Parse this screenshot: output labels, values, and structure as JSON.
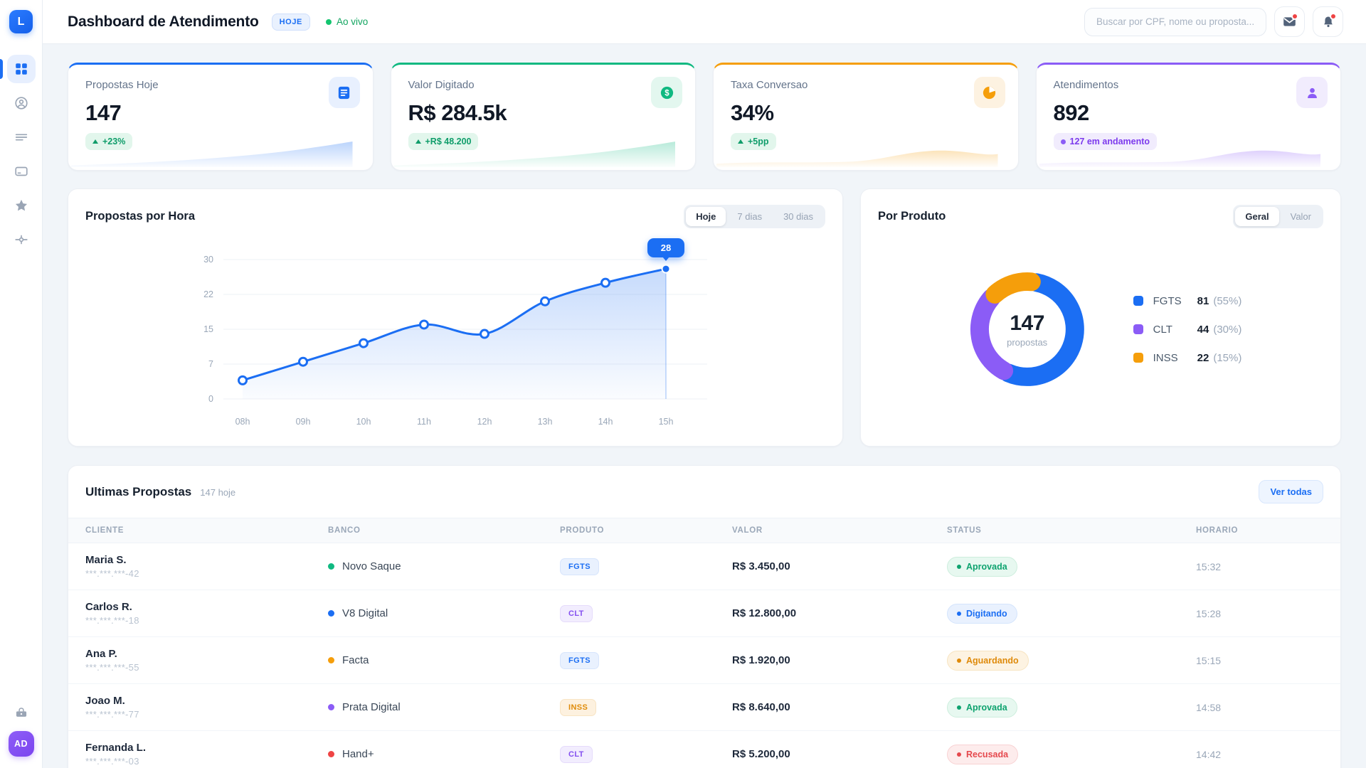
{
  "app": {
    "logo_letter": "L",
    "avatar_initials": "AD"
  },
  "header": {
    "title": "Dashboard de Atendimento",
    "period_badge": "HOJE",
    "live_label": "Ao vivo",
    "search_placeholder": "Buscar por CPF, nome ou proposta..."
  },
  "stats": [
    {
      "label": "Propostas Hoje",
      "value": "147",
      "delta": "+23%",
      "delta_style": "delta-green",
      "accent": "#1b6ef3",
      "icon_bg": "#e8f0fe",
      "icon": "file-text-icon",
      "spark": "ramp"
    },
    {
      "label": "Valor Digitado",
      "value": "R$ 284.5k",
      "delta": "+R$ 48.200",
      "delta_style": "delta-green",
      "accent": "#10b981",
      "icon_bg": "#e3f7ef",
      "icon": "dollar-circle-icon",
      "spark": "ramp"
    },
    {
      "label": "Taxa Conversao",
      "value": "34%",
      "delta": "+5pp",
      "delta_style": "delta-green",
      "accent": "#f59e0b",
      "icon_bg": "#fdf2e1",
      "icon": "pie-chart-icon",
      "spark": "wave"
    },
    {
      "label": "Atendimentos",
      "value": "892",
      "delta": "127 em andamento",
      "delta_style": "delta-purple",
      "accent": "#8b5cf6",
      "icon_bg": "#f1ecfd",
      "icon": "person-icon",
      "spark": "wave"
    }
  ],
  "hourly": {
    "title": "Propostas por Hora",
    "tabs": [
      "Hoje",
      "7 dias",
      "30 dias"
    ],
    "active_tab": "Hoje",
    "tooltip": "28"
  },
  "products": {
    "title": "Por Produto",
    "tabs": [
      "Geral",
      "Valor"
    ],
    "active_tab": "Geral",
    "center_value": "147",
    "center_label": "propostas",
    "legend": [
      {
        "label": "FGTS",
        "value": "81",
        "pct": "(55%)",
        "color": "#1b6ef3"
      },
      {
        "label": "CLT",
        "value": "44",
        "pct": "(30%)",
        "color": "#8b5cf6"
      },
      {
        "label": "INSS",
        "value": "22",
        "pct": "(15%)",
        "color": "#f59e0b"
      }
    ]
  },
  "table": {
    "title": "Ultimas Propostas",
    "subtitle": "147 hoje",
    "action": "Ver todas",
    "columns": [
      "CLIENTE",
      "BANCO",
      "PRODUTO",
      "VALOR",
      "STATUS",
      "HORARIO"
    ],
    "rows": [
      {
        "client": "Maria S.",
        "cpf": "***.***.***-42",
        "bank": "Novo Saque",
        "bank_color": "#10b981",
        "product": "FGTS",
        "value": "R$ 3.450,00",
        "status": "Aprovada",
        "status_type": "approved",
        "time": "15:32"
      },
      {
        "client": "Carlos R.",
        "cpf": "***.***.***-18",
        "bank": "V8 Digital",
        "bank_color": "#1b6ef3",
        "product": "CLT",
        "value": "R$ 12.800,00",
        "status": "Digitando",
        "status_type": "typing",
        "time": "15:28"
      },
      {
        "client": "Ana P.",
        "cpf": "***.***.***-55",
        "bank": "Facta",
        "bank_color": "#f59e0b",
        "product": "FGTS",
        "value": "R$ 1.920,00",
        "status": "Aguardando",
        "status_type": "waiting",
        "time": "15:15"
      },
      {
        "client": "Joao M.",
        "cpf": "***.***.***-77",
        "bank": "Prata Digital",
        "bank_color": "#8b5cf6",
        "product": "INSS",
        "value": "R$ 8.640,00",
        "status": "Aprovada",
        "status_type": "approved",
        "time": "14:58"
      },
      {
        "client": "Fernanda L.",
        "cpf": "***.***.***-03",
        "bank": "Hand+",
        "bank_color": "#ef4444",
        "product": "CLT",
        "value": "R$ 5.200,00",
        "status": "Recusada",
        "status_type": "rejected",
        "time": "14:42"
      }
    ]
  },
  "chart_data": [
    {
      "type": "line",
      "title": "Propostas por Hora",
      "x": [
        "08h",
        "09h",
        "10h",
        "11h",
        "12h",
        "13h",
        "14h",
        "15h"
      ],
      "values": [
        4,
        8,
        12,
        16,
        14,
        21,
        25,
        28
      ],
      "yticks": [
        0,
        7,
        15,
        22,
        30
      ],
      "ylim": [
        0,
        30
      ],
      "line_color": "#1b6ef3",
      "grid": true,
      "tooltip": {
        "x": "15h",
        "value": 28
      }
    },
    {
      "type": "donut",
      "title": "Por Produto",
      "labels": [
        "FGTS",
        "CLT",
        "INSS"
      ],
      "values": [
        81,
        44,
        22
      ],
      "percents": [
        55,
        30,
        15
      ],
      "colors": [
        "#1b6ef3",
        "#8b5cf6",
        "#f59e0b"
      ],
      "center_value": "147",
      "center_label": "propostas"
    }
  ]
}
